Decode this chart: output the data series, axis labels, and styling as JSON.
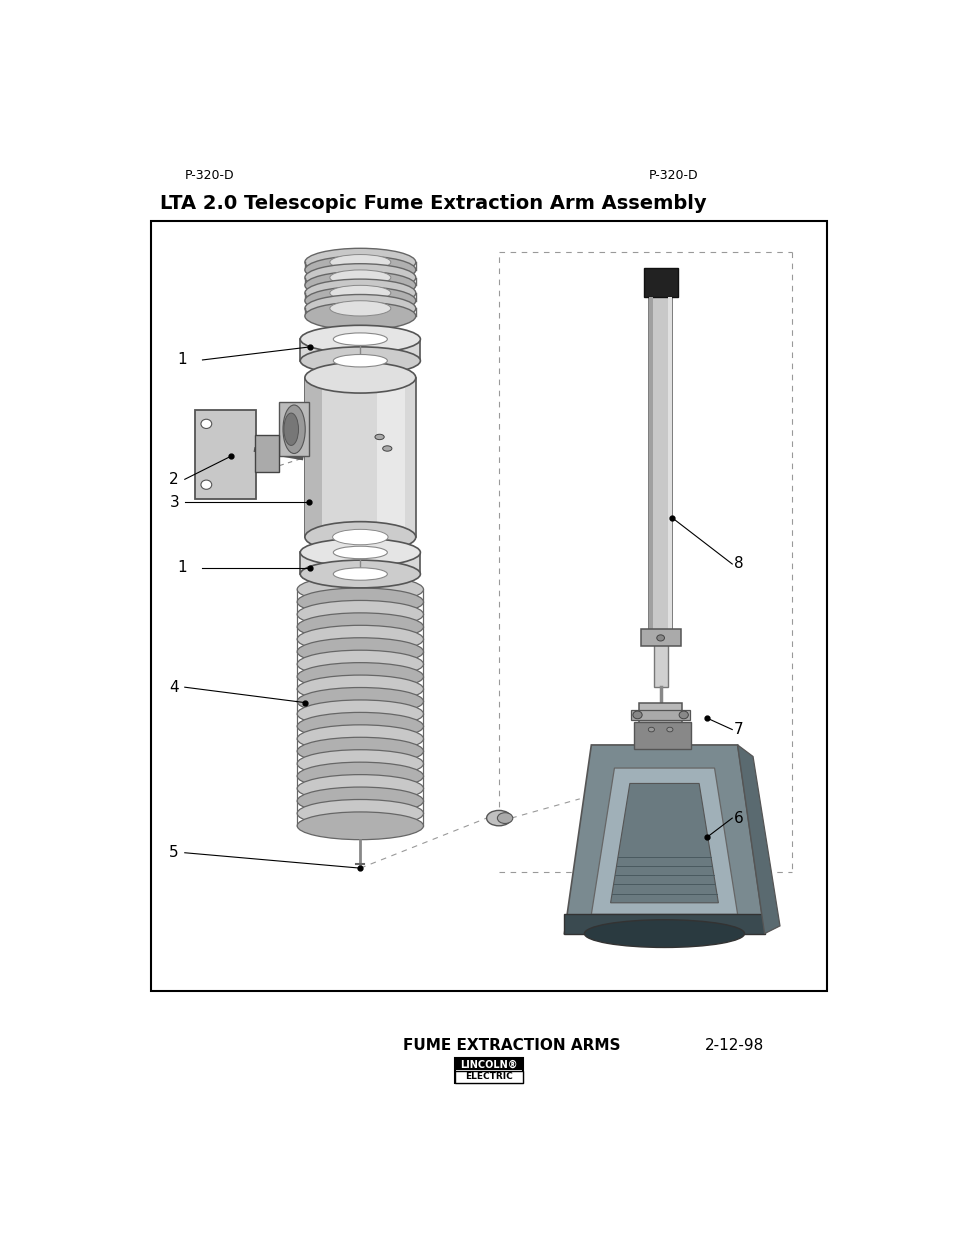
{
  "page_header_left": "P-320-D",
  "page_header_right": "P-320-D",
  "title": "LTA 2.0 Telescopic Fume Extraction Arm Assembly",
  "footer_center": "FUME EXTRACTION ARMS",
  "footer_right": "2-12-98",
  "footer_logo_top": "LINCOLN",
  "footer_logo_bottom": "ELECTRIC",
  "bg_color": "#ffffff",
  "text_color": "#000000",
  "label_color": "#000000",
  "gray_light": "#cccccc",
  "gray_mid": "#aaaaaa",
  "gray_dark": "#888888",
  "gray_darker": "#555555",
  "gray_darkest": "#333333"
}
